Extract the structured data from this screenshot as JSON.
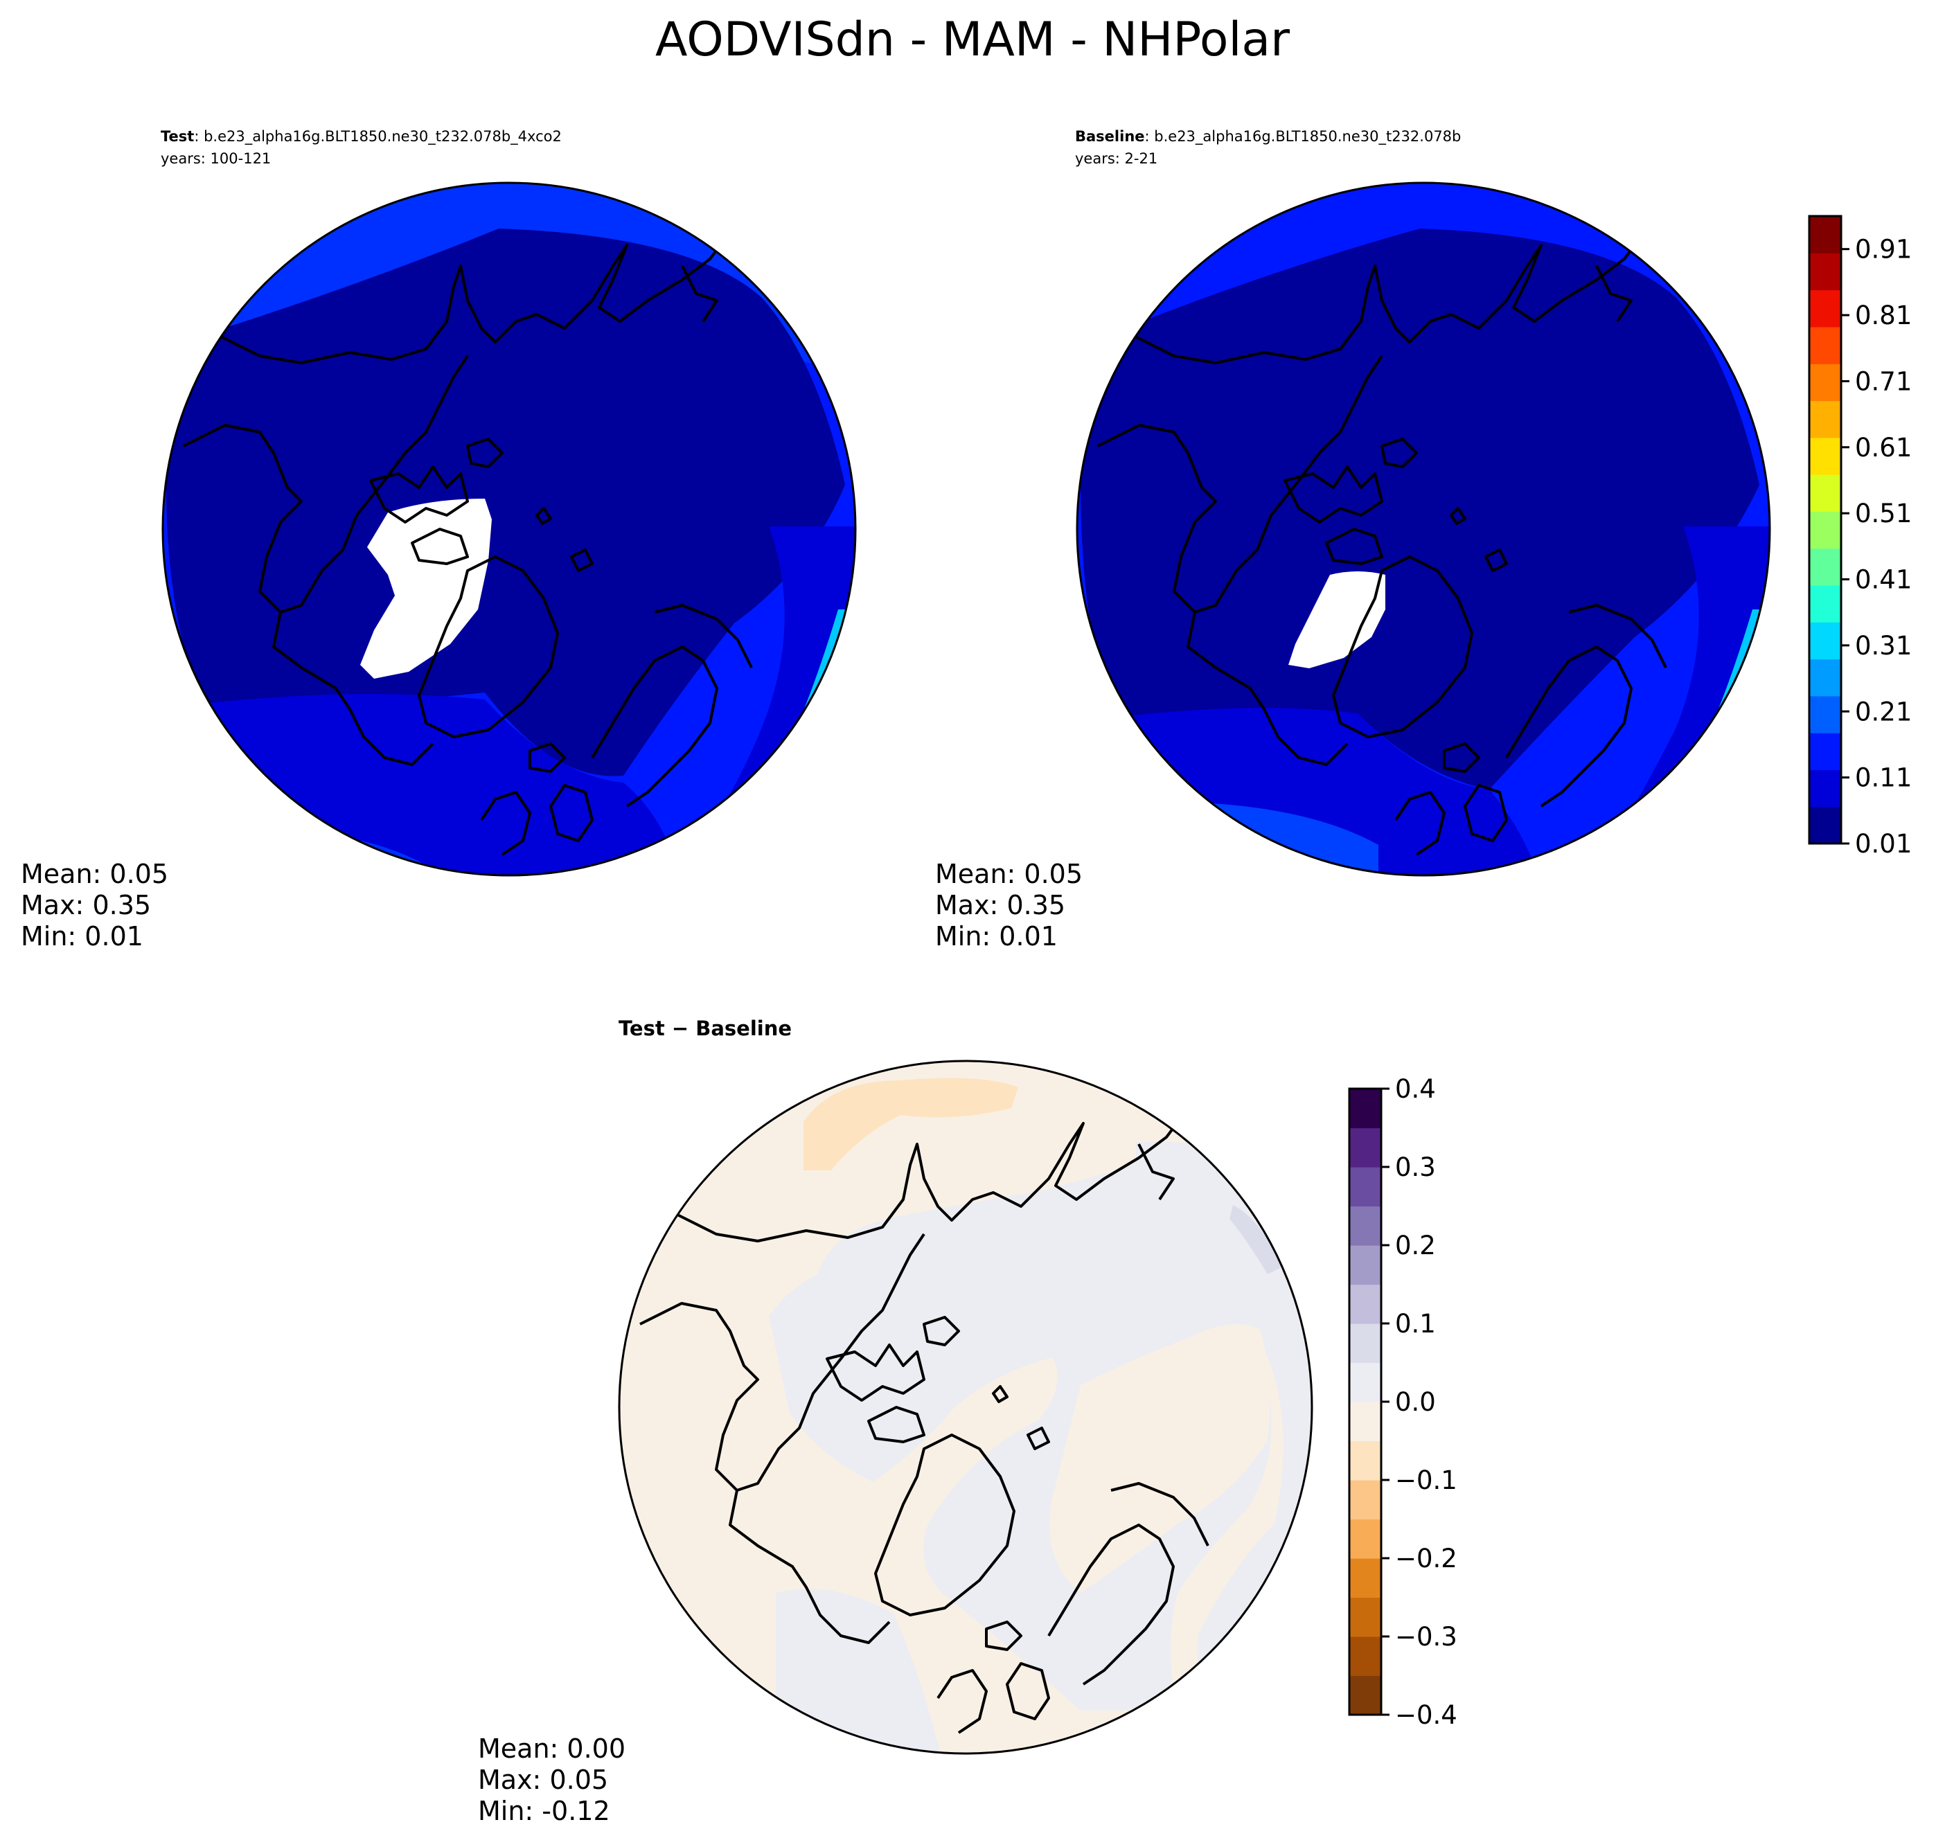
{
  "figure": {
    "title": "AODVISdn - MAM - NHPolar"
  },
  "panels": [
    {
      "id": "test",
      "label_bold": "Test",
      "case": ": b.e23_alpha16g.BLT1850.ne30_t232.078b_4xco2",
      "years": "years: 100-121",
      "stats": {
        "mean": "Mean:  0.05",
        "max": "Max:  0.35",
        "min": "Min:  0.01"
      }
    },
    {
      "id": "baseline",
      "label_bold": "Baseline",
      "case": ": b.e23_alpha16g.BLT1850.ne30_t232.078b",
      "years": "years: 2-21",
      "stats": {
        "mean": "Mean:  0.05",
        "max": "Max:  0.35",
        "min": "Min:  0.01"
      }
    },
    {
      "id": "diff",
      "label_bold": "Test − Baseline",
      "stats": {
        "mean": "Mean:  0.00",
        "max": "Max:  0.05",
        "min": "Min: -0.12"
      }
    }
  ],
  "colorbars": {
    "main": {
      "ticks": [
        "0.01",
        "0.11",
        "0.21",
        "0.31",
        "0.41",
        "0.51",
        "0.61",
        "0.71",
        "0.81",
        "0.91"
      ],
      "range": [
        0.01,
        0.96
      ],
      "colors": [
        "#000090",
        "#0000d8",
        "#0018ff",
        "#0060ff",
        "#009cff",
        "#00d8ff",
        "#20ffd8",
        "#60ff9c",
        "#9cff60",
        "#d8ff20",
        "#ffe000",
        "#ffb000",
        "#ff7c00",
        "#ff4800",
        "#f01000",
        "#b00000",
        "#800000"
      ]
    },
    "diff": {
      "ticks": [
        "0.4",
        "0.3",
        "0.2",
        "0.1",
        "0.0",
        "−0.1",
        "−0.2",
        "−0.3",
        "−0.4"
      ],
      "range": [
        -0.4,
        0.4
      ],
      "colors": [
        "#7f3b08",
        "#a44e06",
        "#c76b0c",
        "#e3851d",
        "#f8ac56",
        "#fdc689",
        "#fde3bf",
        "#f8f0e5",
        "#ececf3",
        "#dadcea",
        "#c2bedc",
        "#a39cc8",
        "#8577b4",
        "#6a4da0",
        "#532484",
        "#2d004b"
      ]
    }
  },
  "map_colors": {
    "deep_blue": "#00009a",
    "mid_blue": "#0000d8",
    "bright_blue": "#0018ff",
    "light_blue": "#0060ff",
    "cyan": "#00d8ff",
    "missing_white": "#ffffff",
    "diff_tan": "#f8f0e5",
    "diff_peach": "#fde3bf",
    "diff_lav": "#ececf3",
    "diff_lav2": "#dadcea",
    "coast": "#000000"
  }
}
